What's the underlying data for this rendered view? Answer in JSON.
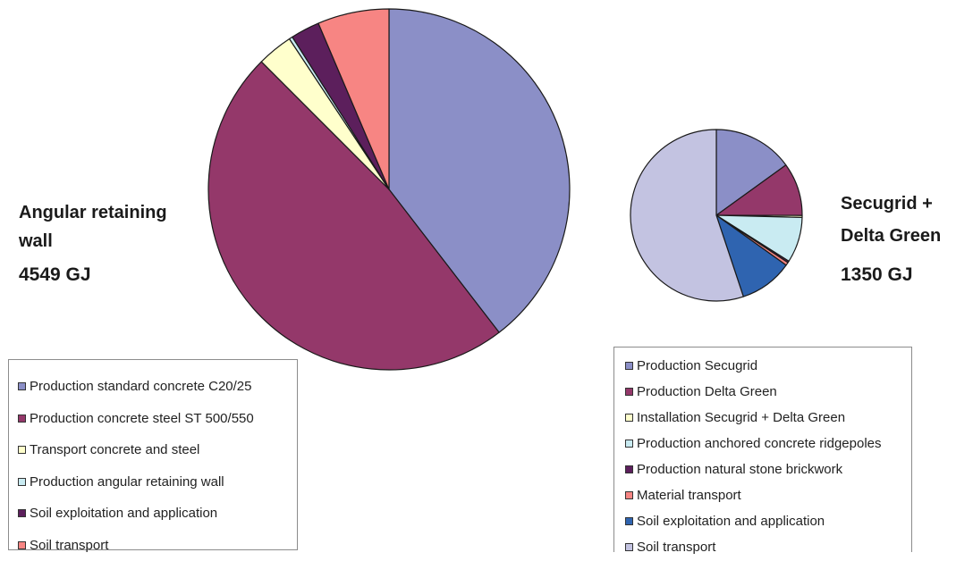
{
  "chart_data": [
    {
      "type": "pie",
      "title": "Angular retaining wall",
      "total": "4549 GJ",
      "start": "top",
      "direction": "clockwise",
      "slices": [
        {
          "label": "Production standard concrete C20/25",
          "value": 1800,
          "color": "#8B8FC7"
        },
        {
          "label": "Production concrete steel ST 500/550",
          "value": 2181,
          "color": "#94386A"
        },
        {
          "label": "Transport concrete and steel",
          "value": 145,
          "color": "#FFFFCC"
        },
        {
          "label": "Production angular retaining wall",
          "value": 14,
          "color": "#C9EBF2"
        },
        {
          "label": "Soil exploitation and application",
          "value": 118,
          "color": "#5C1F5C"
        },
        {
          "label": "Soil transport",
          "value": 291,
          "color": "#F78583"
        }
      ]
    },
    {
      "type": "pie",
      "title": "Secugrid + Delta Green",
      "total": "1350 GJ",
      "start": "top",
      "direction": "clockwise",
      "slices": [
        {
          "label": "Production Secugrid",
          "value": 203,
          "color": "#8B8FC7"
        },
        {
          "label": "Production Delta Green",
          "value": 135,
          "color": "#94386A"
        },
        {
          "label": "Installation Secugrid + Delta Green",
          "value": 5,
          "color": "#FFFFCC"
        },
        {
          "label": "Production anchored concrete ridgepoles",
          "value": 116,
          "color": "#C9EBF2"
        },
        {
          "label": "Production natural stone brickwork",
          "value": 4,
          "color": "#5C1F5C"
        },
        {
          "label": "Material transport",
          "value": 8,
          "color": "#F78583"
        },
        {
          "label": "Soil exploitation and application",
          "value": 135,
          "color": "#2F64B0"
        },
        {
          "label": "Soil transport",
          "value": 744,
          "color": "#C3C3E1"
        }
      ]
    }
  ],
  "left_label": {
    "line1": "Angular retaining",
    "line2": "wall",
    "total": "4549 GJ"
  },
  "right_label": {
    "line1": "Secugrid +",
    "line2": "Delta Green",
    "total": "1350 GJ"
  }
}
